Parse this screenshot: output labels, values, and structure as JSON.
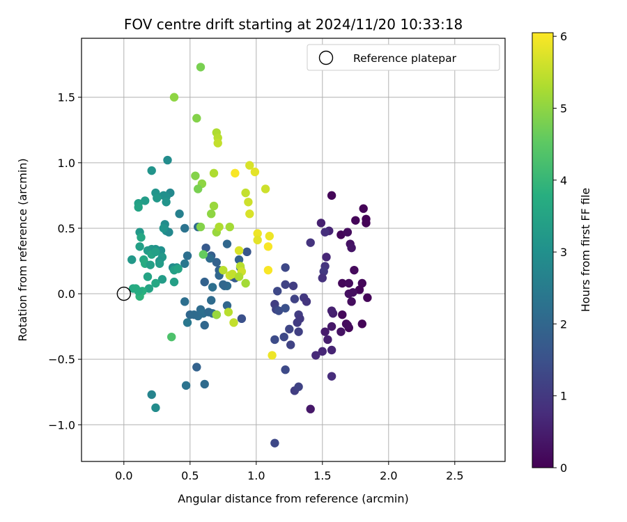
{
  "chart_data": {
    "type": "scatter",
    "title": "FOV centre drift starting at 2024/11/20 10:33:18",
    "xlabel": "Angular distance from reference (arcmin)",
    "ylabel": "Rotation from reference (arcmin)",
    "xlim": [
      -0.32,
      2.88
    ],
    "ylim": [
      -1.28,
      1.95
    ],
    "xticks": [
      0.0,
      0.5,
      1.0,
      1.5,
      2.0,
      2.5
    ],
    "xtick_labels": [
      "0.0",
      "0.5",
      "1.0",
      "1.5",
      "2.0",
      "2.5"
    ],
    "yticks": [
      -1.0,
      -0.5,
      0.0,
      0.5,
      1.0,
      1.5
    ],
    "ytick_labels": [
      "−1.0",
      "−0.5",
      "0.0",
      "0.5",
      "1.0",
      "1.5"
    ],
    "grid": true,
    "legend": {
      "position": "upper right",
      "entries": [
        "Reference platepar"
      ]
    },
    "reference_point": {
      "x": 0.0,
      "y": 0.0
    },
    "colorbar": {
      "label": "Hours from first FF file",
      "min": 0,
      "max": 6.05,
      "ticks": [
        0,
        1,
        2,
        3,
        4,
        5,
        6
      ],
      "tick_labels": [
        "0",
        "1",
        "2",
        "3",
        "4",
        "5",
        "6"
      ],
      "colormap": "viridis"
    },
    "points": [
      {
        "x": 1.57,
        "y": 0.75,
        "h": 0.08
      },
      {
        "x": 1.81,
        "y": 0.65,
        "h": 0.05
      },
      {
        "x": 1.83,
        "y": 0.57,
        "h": 0.04
      },
      {
        "x": 1.83,
        "y": 0.54,
        "h": 0.06
      },
      {
        "x": 1.75,
        "y": 0.56,
        "h": 0.07
      },
      {
        "x": 1.64,
        "y": 0.45,
        "h": 0.1
      },
      {
        "x": 1.69,
        "y": 0.47,
        "h": 0.2
      },
      {
        "x": 1.71,
        "y": 0.38,
        "h": 0.3
      },
      {
        "x": 1.72,
        "y": 0.35,
        "h": 0.35
      },
      {
        "x": 1.74,
        "y": 0.18,
        "h": 0.15
      },
      {
        "x": 1.65,
        "y": 0.08,
        "h": 0.12
      },
      {
        "x": 1.7,
        "y": 0.08,
        "h": 0.18
      },
      {
        "x": 1.8,
        "y": 0.08,
        "h": 0.1
      },
      {
        "x": 1.78,
        "y": 0.03,
        "h": 0.05
      },
      {
        "x": 1.84,
        "y": -0.03,
        "h": 0.08
      },
      {
        "x": 1.7,
        "y": 0.0,
        "h": 0.25
      },
      {
        "x": 1.73,
        "y": 0.01,
        "h": 0.22
      },
      {
        "x": 1.72,
        "y": -0.06,
        "h": 0.2
      },
      {
        "x": 1.65,
        "y": -0.16,
        "h": 0.12
      },
      {
        "x": 1.58,
        "y": -0.15,
        "h": 0.5
      },
      {
        "x": 1.57,
        "y": -0.13,
        "h": 0.55
      },
      {
        "x": 1.57,
        "y": -0.25,
        "h": 0.4
      },
      {
        "x": 1.68,
        "y": -0.23,
        "h": 0.15
      },
      {
        "x": 1.7,
        "y": -0.26,
        "h": 0.1
      },
      {
        "x": 1.69,
        "y": -0.24,
        "h": 0.2
      },
      {
        "x": 1.8,
        "y": -0.23,
        "h": 0.05
      },
      {
        "x": 1.64,
        "y": -0.29,
        "h": 0.3
      },
      {
        "x": 1.52,
        "y": -0.29,
        "h": 0.45
      },
      {
        "x": 1.54,
        "y": -0.35,
        "h": 0.5
      },
      {
        "x": 1.57,
        "y": -0.43,
        "h": 0.6
      },
      {
        "x": 1.5,
        "y": -0.44,
        "h": 0.65
      },
      {
        "x": 1.45,
        "y": -0.47,
        "h": 0.7
      },
      {
        "x": 1.57,
        "y": -0.63,
        "h": 0.75
      },
      {
        "x": 1.41,
        "y": -0.88,
        "h": 0.4
      },
      {
        "x": 1.49,
        "y": 0.54,
        "h": 0.55
      },
      {
        "x": 1.55,
        "y": 0.48,
        "h": 0.6
      },
      {
        "x": 1.52,
        "y": 0.47,
        "h": 0.8
      },
      {
        "x": 1.41,
        "y": 0.39,
        "h": 0.9
      },
      {
        "x": 1.53,
        "y": 0.28,
        "h": 0.65
      },
      {
        "x": 1.52,
        "y": 0.21,
        "h": 0.9
      },
      {
        "x": 1.51,
        "y": 0.17,
        "h": 1.0
      },
      {
        "x": 1.5,
        "y": 0.12,
        "h": 0.85
      },
      {
        "x": 1.28,
        "y": 0.06,
        "h": 1.1
      },
      {
        "x": 1.22,
        "y": 0.07,
        "h": 1.2
      },
      {
        "x": 1.22,
        "y": 0.2,
        "h": 1.3
      },
      {
        "x": 1.16,
        "y": 0.02,
        "h": 1.3
      },
      {
        "x": 1.14,
        "y": -0.08,
        "h": 1.1
      },
      {
        "x": 1.15,
        "y": -0.12,
        "h": 1.2
      },
      {
        "x": 1.17,
        "y": -0.13,
        "h": 1.4
      },
      {
        "x": 1.22,
        "y": -0.11,
        "h": 1.5
      },
      {
        "x": 1.29,
        "y": -0.04,
        "h": 1.2
      },
      {
        "x": 1.36,
        "y": -0.03,
        "h": 1.0
      },
      {
        "x": 1.38,
        "y": -0.06,
        "h": 0.95
      },
      {
        "x": 1.32,
        "y": -0.16,
        "h": 1.1
      },
      {
        "x": 1.33,
        "y": -0.19,
        "h": 1.0
      },
      {
        "x": 1.31,
        "y": -0.22,
        "h": 1.05
      },
      {
        "x": 1.25,
        "y": -0.27,
        "h": 1.25
      },
      {
        "x": 1.32,
        "y": -0.29,
        "h": 1.15
      },
      {
        "x": 1.21,
        "y": -0.33,
        "h": 1.3
      },
      {
        "x": 1.14,
        "y": -0.35,
        "h": 1.4
      },
      {
        "x": 1.26,
        "y": -0.39,
        "h": 1.2
      },
      {
        "x": 1.22,
        "y": -0.58,
        "h": 1.35
      },
      {
        "x": 1.29,
        "y": -0.74,
        "h": 1.1
      },
      {
        "x": 1.32,
        "y": -0.71,
        "h": 1.2
      },
      {
        "x": 1.14,
        "y": -1.14,
        "h": 1.3
      },
      {
        "x": 0.62,
        "y": 0.35,
        "h": 1.7
      },
      {
        "x": 0.78,
        "y": 0.38,
        "h": 2.0
      },
      {
        "x": 0.66,
        "y": 0.29,
        "h": 1.8
      },
      {
        "x": 0.7,
        "y": 0.24,
        "h": 1.9
      },
      {
        "x": 0.65,
        "y": 0.27,
        "h": 2.1
      },
      {
        "x": 0.72,
        "y": 0.18,
        "h": 1.9
      },
      {
        "x": 0.72,
        "y": 0.14,
        "h": 2.0
      },
      {
        "x": 0.82,
        "y": 0.13,
        "h": 1.8
      },
      {
        "x": 0.84,
        "y": 0.12,
        "h": 1.7
      },
      {
        "x": 0.87,
        "y": 0.26,
        "h": 1.9
      },
      {
        "x": 0.88,
        "y": 0.2,
        "h": 1.85
      },
      {
        "x": 0.93,
        "y": 0.32,
        "h": 1.6
      },
      {
        "x": 0.76,
        "y": 0.06,
        "h": 2.0
      },
      {
        "x": 0.78,
        "y": 0.06,
        "h": 2.1
      },
      {
        "x": 0.67,
        "y": 0.05,
        "h": 2.2
      },
      {
        "x": 0.61,
        "y": 0.09,
        "h": 1.9
      },
      {
        "x": 0.75,
        "y": 0.07,
        "h": 2.0
      },
      {
        "x": 0.66,
        "y": -0.05,
        "h": 2.1
      },
      {
        "x": 0.78,
        "y": -0.09,
        "h": 2.0
      },
      {
        "x": 0.89,
        "y": -0.19,
        "h": 1.5
      },
      {
        "x": 0.58,
        "y": -0.12,
        "h": 2.1
      },
      {
        "x": 0.6,
        "y": -0.15,
        "h": 2.2
      },
      {
        "x": 0.56,
        "y": -0.17,
        "h": 2.15
      },
      {
        "x": 0.5,
        "y": -0.16,
        "h": 2.0
      },
      {
        "x": 0.53,
        "y": -0.16,
        "h": 2.1
      },
      {
        "x": 0.64,
        "y": -0.14,
        "h": 2.05
      },
      {
        "x": 0.67,
        "y": -0.15,
        "h": 2.1
      },
      {
        "x": 0.7,
        "y": -0.16,
        "h": 2.15
      },
      {
        "x": 0.46,
        "y": -0.06,
        "h": 2.2
      },
      {
        "x": 0.48,
        "y": -0.22,
        "h": 2.4
      },
      {
        "x": 0.61,
        "y": -0.24,
        "h": 2.0
      },
      {
        "x": 0.55,
        "y": -0.56,
        "h": 1.9
      },
      {
        "x": 0.61,
        "y": -0.69,
        "h": 2.1
      },
      {
        "x": 0.47,
        "y": -0.7,
        "h": 2.3
      },
      {
        "x": 0.48,
        "y": 0.29,
        "h": 2.2
      },
      {
        "x": 0.46,
        "y": 0.23,
        "h": 2.4
      },
      {
        "x": 0.46,
        "y": 0.5,
        "h": 2.3
      },
      {
        "x": 0.56,
        "y": 0.51,
        "h": 2.1
      },
      {
        "x": 0.42,
        "y": 0.61,
        "h": 2.6
      },
      {
        "x": 0.35,
        "y": 0.77,
        "h": 2.8
      },
      {
        "x": 0.33,
        "y": 1.02,
        "h": 2.9
      },
      {
        "x": 0.21,
        "y": 0.94,
        "h": 3.1
      },
      {
        "x": 0.32,
        "y": 0.74,
        "h": 3.0
      },
      {
        "x": 0.24,
        "y": 0.77,
        "h": 3.1
      },
      {
        "x": 0.3,
        "y": 0.75,
        "h": 3.0
      },
      {
        "x": 0.25,
        "y": 0.73,
        "h": 3.2
      },
      {
        "x": 0.32,
        "y": 0.7,
        "h": 3.1
      },
      {
        "x": 0.16,
        "y": 0.71,
        "h": 3.3
      },
      {
        "x": 0.11,
        "y": 0.69,
        "h": 3.4
      },
      {
        "x": 0.11,
        "y": 0.66,
        "h": 3.5
      },
      {
        "x": 0.12,
        "y": 0.47,
        "h": 3.2
      },
      {
        "x": 0.31,
        "y": 0.53,
        "h": 2.9
      },
      {
        "x": 0.32,
        "y": 0.48,
        "h": 3.0
      },
      {
        "x": 0.34,
        "y": 0.47,
        "h": 2.8
      },
      {
        "x": 0.3,
        "y": 0.5,
        "h": 3.1
      },
      {
        "x": 0.13,
        "y": 0.43,
        "h": 3.6
      },
      {
        "x": 0.12,
        "y": 0.36,
        "h": 3.4
      },
      {
        "x": 0.18,
        "y": 0.33,
        "h": 3.3
      },
      {
        "x": 0.21,
        "y": 0.34,
        "h": 3.2
      },
      {
        "x": 0.24,
        "y": 0.34,
        "h": 3.1
      },
      {
        "x": 0.28,
        "y": 0.33,
        "h": 3.0
      },
      {
        "x": 0.21,
        "y": 0.3,
        "h": 3.5
      },
      {
        "x": 0.24,
        "y": 0.32,
        "h": 3.4
      },
      {
        "x": 0.29,
        "y": 0.28,
        "h": 3.2
      },
      {
        "x": 0.27,
        "y": 0.25,
        "h": 3.1
      },
      {
        "x": 0.15,
        "y": 0.26,
        "h": 3.6
      },
      {
        "x": 0.16,
        "y": 0.23,
        "h": 3.7
      },
      {
        "x": 0.2,
        "y": 0.22,
        "h": 3.4
      },
      {
        "x": 0.27,
        "y": 0.23,
        "h": 3.3
      },
      {
        "x": 0.06,
        "y": 0.26,
        "h": 3.2
      },
      {
        "x": 0.37,
        "y": 0.2,
        "h": 2.9
      },
      {
        "x": 0.4,
        "y": 0.2,
        "h": 3.0
      },
      {
        "x": 0.38,
        "y": 0.18,
        "h": 3.4
      },
      {
        "x": 0.41,
        "y": 0.19,
        "h": 3.5
      },
      {
        "x": 0.18,
        "y": 0.13,
        "h": 3.5
      },
      {
        "x": 0.29,
        "y": 0.11,
        "h": 3.3
      },
      {
        "x": 0.24,
        "y": 0.08,
        "h": 3.6
      },
      {
        "x": 0.38,
        "y": 0.09,
        "h": 3.4
      },
      {
        "x": 0.19,
        "y": 0.04,
        "h": 3.5
      },
      {
        "x": 0.07,
        "y": 0.04,
        "h": 3.6
      },
      {
        "x": 0.09,
        "y": 0.04,
        "h": 3.7
      },
      {
        "x": 0.14,
        "y": 0.02,
        "h": 3.8
      },
      {
        "x": 0.12,
        "y": -0.02,
        "h": 3.9
      },
      {
        "x": 0.11,
        "y": 0.02,
        "h": 3.7
      },
      {
        "x": 0.21,
        "y": -0.77,
        "h": 2.7
      },
      {
        "x": 0.24,
        "y": -0.87,
        "h": 2.9
      },
      {
        "x": 0.36,
        "y": -0.33,
        "h": 4.3
      },
      {
        "x": 0.58,
        "y": 1.73,
        "h": 4.8
      },
      {
        "x": 0.38,
        "y": 1.5,
        "h": 5.0
      },
      {
        "x": 0.55,
        "y": 1.34,
        "h": 4.9
      },
      {
        "x": 0.7,
        "y": 1.23,
        "h": 5.3
      },
      {
        "x": 0.71,
        "y": 1.19,
        "h": 5.4
      },
      {
        "x": 0.71,
        "y": 1.15,
        "h": 5.5
      },
      {
        "x": 0.54,
        "y": 0.9,
        "h": 4.9
      },
      {
        "x": 0.59,
        "y": 0.84,
        "h": 5.0
      },
      {
        "x": 0.56,
        "y": 0.8,
        "h": 4.8
      },
      {
        "x": 0.68,
        "y": 0.92,
        "h": 5.3
      },
      {
        "x": 0.68,
        "y": 0.67,
        "h": 5.1
      },
      {
        "x": 0.66,
        "y": 0.61,
        "h": 5.0
      },
      {
        "x": 0.58,
        "y": 0.51,
        "h": 4.9
      },
      {
        "x": 0.6,
        "y": 0.3,
        "h": 4.6
      },
      {
        "x": 0.7,
        "y": 0.47,
        "h": 5.1
      },
      {
        "x": 0.72,
        "y": 0.51,
        "h": 5.3
      },
      {
        "x": 0.8,
        "y": 0.51,
        "h": 5.2
      },
      {
        "x": 0.7,
        "y": -0.16,
        "h": 5.1
      },
      {
        "x": 0.79,
        "y": -0.14,
        "h": 5.4
      },
      {
        "x": 0.83,
        "y": -0.22,
        "h": 5.5
      },
      {
        "x": 0.75,
        "y": 0.18,
        "h": 5.4
      },
      {
        "x": 0.8,
        "y": 0.14,
        "h": 5.6
      },
      {
        "x": 0.82,
        "y": 0.15,
        "h": 5.5
      },
      {
        "x": 0.88,
        "y": 0.21,
        "h": 5.4
      },
      {
        "x": 0.89,
        "y": 0.17,
        "h": 5.6
      },
      {
        "x": 0.87,
        "y": 0.13,
        "h": 5.3
      },
      {
        "x": 0.92,
        "y": 0.08,
        "h": 5.2
      },
      {
        "x": 0.87,
        "y": 0.33,
        "h": 5.7
      },
      {
        "x": 0.84,
        "y": 0.92,
        "h": 6.0
      },
      {
        "x": 0.95,
        "y": 0.98,
        "h": 5.7
      },
      {
        "x": 0.99,
        "y": 0.93,
        "h": 5.8
      },
      {
        "x": 0.92,
        "y": 0.77,
        "h": 5.5
      },
      {
        "x": 0.94,
        "y": 0.7,
        "h": 5.6
      },
      {
        "x": 0.95,
        "y": 0.61,
        "h": 5.7
      },
      {
        "x": 1.07,
        "y": 0.8,
        "h": 5.6
      },
      {
        "x": 1.01,
        "y": 0.46,
        "h": 5.9
      },
      {
        "x": 1.01,
        "y": 0.41,
        "h": 5.8
      },
      {
        "x": 1.1,
        "y": 0.44,
        "h": 5.9
      },
      {
        "x": 1.09,
        "y": 0.36,
        "h": 6.0
      },
      {
        "x": 1.09,
        "y": 0.18,
        "h": 6.0
      },
      {
        "x": 1.12,
        "y": -0.47,
        "h": 5.9
      }
    ]
  }
}
